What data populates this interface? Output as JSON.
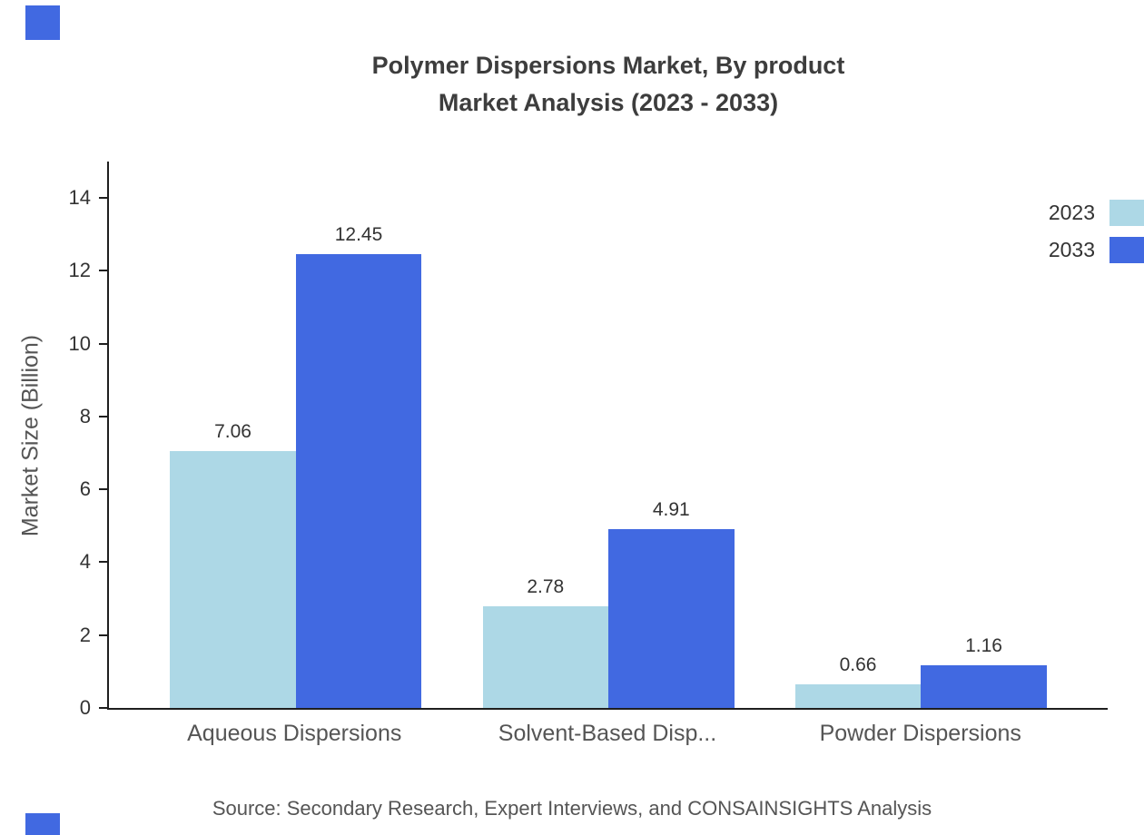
{
  "header": {
    "title_line1": "Polymer Dispersions Market, By product",
    "title_line2": "Market Analysis (2023 - 2033)"
  },
  "footer": {
    "source": "Source: Secondary Research, Expert Interviews, and CONSAINSIGHTS Analysis"
  },
  "colors": {
    "series_2023": "#ADD8E6",
    "series_2033": "#4169E1",
    "axis": "#1f1f1f",
    "accent_square": "#4169E1"
  },
  "chart_data": {
    "type": "bar",
    "title": "Polymer Dispersions Market, By product Market Analysis (2023 - 2033)",
    "categories": [
      "Aqueous Dispersions",
      "Solvent-Based Disp...",
      "Powder Dispersions"
    ],
    "series": [
      {
        "name": "2023",
        "color": "#ADD8E6",
        "values": [
          7.06,
          2.78,
          0.66
        ]
      },
      {
        "name": "2033",
        "color": "#4169E1",
        "values": [
          12.45,
          4.91,
          1.16
        ]
      }
    ],
    "xlabel": "",
    "ylabel": "Market Size (Billion)",
    "ylim": [
      0,
      15
    ],
    "yticks": [
      0,
      2,
      4,
      6,
      8,
      10,
      12,
      14
    ],
    "grid": false,
    "legend_position": "right",
    "value_label_decimals": 2
  }
}
